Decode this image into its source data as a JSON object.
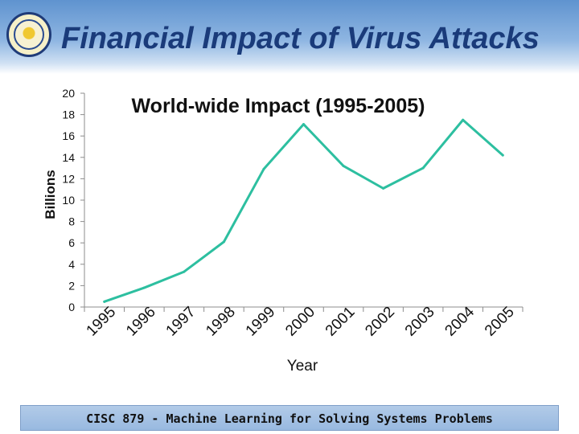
{
  "slide": {
    "title": "Financial Impact of Virus Attacks",
    "footer": "CISC 879 - Machine Learning for Solving Systems Problems"
  },
  "colors": {
    "title": "#1a3b7a",
    "line": "#2dbfa0",
    "header": "#6c9ed6",
    "footer": "#a8c4e6"
  },
  "chart_data": {
    "type": "line",
    "title": "World-wide Impact (1995-2005)",
    "xlabel": "Year",
    "ylabel": "Billions",
    "categories": [
      "1995",
      "1996",
      "1997",
      "1998",
      "1999",
      "2000",
      "2001",
      "2002",
      "2003",
      "2004",
      "2005"
    ],
    "series": [
      {
        "values": [
          0.5,
          1.8,
          3.3,
          6.1,
          12.9,
          17.1,
          13.2,
          11.1,
          13.0,
          17.5,
          14.2
        ]
      }
    ],
    "ylim": [
      0,
      20
    ],
    "yticks": [
      0,
      2,
      4,
      6,
      8,
      10,
      12,
      14,
      16,
      18,
      20
    ],
    "grid": false,
    "legend": "none"
  }
}
